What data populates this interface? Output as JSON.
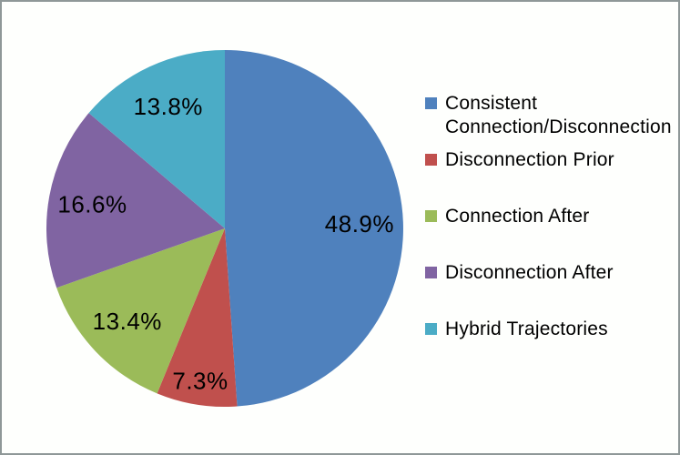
{
  "figure": {
    "background_color": "#FEFFFD",
    "border_color": "#8F9898"
  },
  "chart_data": {
    "type": "pie",
    "title": "",
    "categories": [
      "Consistent Connection/Disconnection",
      "Disconnection Prior",
      "Connection After",
      "Disconnection After",
      "Hybrid Trajectories"
    ],
    "values": [
      48.9,
      7.3,
      13.4,
      16.6,
      13.8
    ],
    "data_labels": [
      "48.9%",
      "7.3%",
      "13.4%",
      "16.6%",
      "13.8%"
    ],
    "colors": [
      "#4F81BD",
      "#C0504D",
      "#9BBB59",
      "#8064A2",
      "#4BACC6"
    ],
    "legend_labels": [
      "Consistent\nConnection/Disconnection",
      "Disconnection Prior",
      "Connection After",
      "Disconnection After",
      "Hybrid Trajectories"
    ],
    "legend_position": "right",
    "start_angle_deg": 0,
    "direction": "clockwise",
    "label_color": "#000000"
  }
}
